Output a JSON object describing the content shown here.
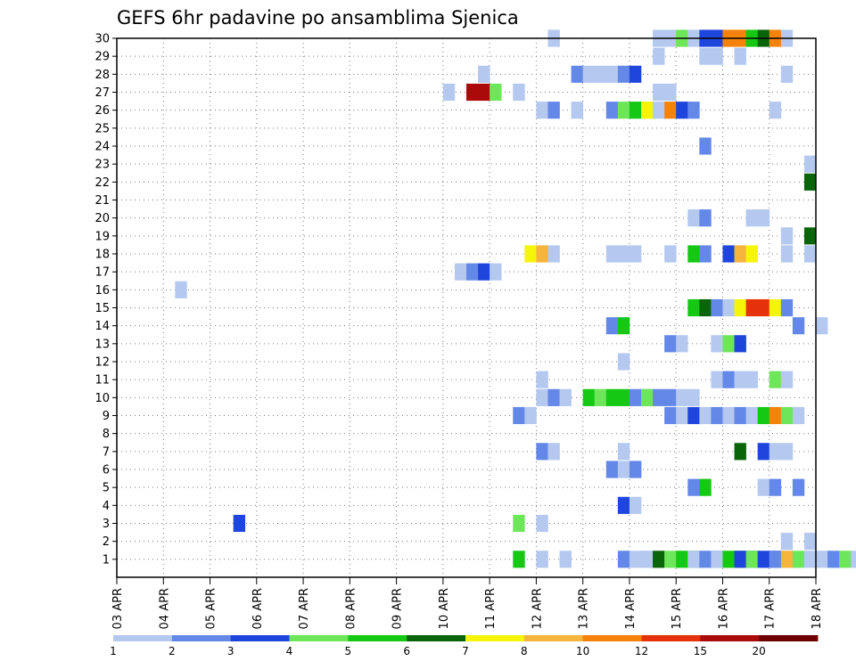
{
  "chart_data": {
    "type": "heatmap",
    "title": "GEFS 6hr padavine po ansamblima Sjenica",
    "xlabel": "",
    "ylabel": "",
    "x_start": "03 APR",
    "x_tick_labels": [
      "03 APR",
      "04 APR",
      "05 APR",
      "06 APR",
      "07 APR",
      "08 APR",
      "09 APR",
      "10 APR",
      "11 APR",
      "12 APR",
      "13 APR",
      "14 APR",
      "15 APR",
      "16 APR",
      "17 APR",
      "18 APR"
    ],
    "x_range_days": [
      0,
      15
    ],
    "y_tick_labels": [
      "1",
      "2",
      "3",
      "4",
      "5",
      "6",
      "7",
      "8",
      "9",
      "10",
      "11",
      "12",
      "13",
      "14",
      "15",
      "16",
      "17",
      "18",
      "19",
      "20",
      "21",
      "22",
      "23",
      "24",
      "25",
      "26",
      "27",
      "28",
      "29",
      "30"
    ],
    "y_range": [
      0,
      30
    ],
    "grid": true,
    "time_step_hours": 6,
    "colorbar": {
      "levels": [
        "1",
        "2",
        "3",
        "4",
        "5",
        "6",
        "7",
        "8",
        "10",
        "12",
        "15",
        "20"
      ],
      "colors": [
        "#b4c8f0",
        "#6488e8",
        "#1e46dc",
        "#6ee65a",
        "#14c814",
        "#0a640a",
        "#f5f50a",
        "#f5b43c",
        "#f5820a",
        "#e6320a",
        "#aa0a0a",
        "#6e0000"
      ]
    },
    "cells": [
      [
        1,
        8.5,
        5,
        1
      ],
      [
        1,
        9,
        1,
        1
      ],
      [
        1,
        9.5,
        1,
        1
      ],
      [
        1,
        10.75,
        2,
        1
      ],
      [
        1,
        11,
        1,
        2
      ],
      [
        1,
        11.25,
        1,
        1
      ],
      [
        1,
        11.5,
        6,
        1
      ],
      [
        1,
        11.75,
        4,
        1
      ],
      [
        1,
        12,
        5,
        2
      ],
      [
        1,
        12.25,
        1,
        1
      ],
      [
        1,
        12.5,
        2,
        2
      ],
      [
        1,
        12.75,
        1,
        1
      ],
      [
        1,
        13,
        5,
        2
      ],
      [
        1,
        13.25,
        3,
        2
      ],
      [
        1,
        13.5,
        4,
        1
      ],
      [
        1,
        13.75,
        3,
        2
      ],
      [
        1,
        14,
        2,
        1
      ],
      [
        1,
        14.25,
        8,
        1
      ],
      [
        1,
        14.5,
        4,
        1
      ],
      [
        1,
        14.75,
        1,
        1
      ],
      [
        1,
        15,
        1,
        1
      ],
      [
        1,
        15.25,
        2,
        1
      ],
      [
        1,
        15.5,
        4,
        1
      ],
      [
        1,
        15.75,
        1,
        1
      ],
      [
        2,
        14.25,
        1,
        1
      ],
      [
        2,
        14.75,
        1,
        1
      ],
      [
        3,
        2.5,
        3,
        1
      ],
      [
        3,
        8.5,
        4,
        1
      ],
      [
        3,
        9,
        1,
        1
      ],
      [
        4,
        10.75,
        3,
        1
      ],
      [
        4,
        11,
        1,
        1
      ],
      [
        5,
        12.25,
        2,
        1
      ],
      [
        5,
        12.5,
        5,
        1
      ],
      [
        5,
        13.75,
        1,
        1
      ],
      [
        5,
        14,
        2,
        1
      ],
      [
        5,
        14.5,
        2,
        1
      ],
      [
        6,
        10.5,
        2,
        1
      ],
      [
        6,
        10.75,
        1,
        2
      ],
      [
        6,
        11,
        2,
        1
      ],
      [
        7,
        9,
        2,
        1
      ],
      [
        7,
        9.25,
        1,
        1
      ],
      [
        7,
        10.75,
        1,
        1
      ],
      [
        7,
        13.25,
        6,
        1
      ],
      [
        7,
        13.75,
        3,
        1
      ],
      [
        7,
        14,
        1,
        2
      ],
      [
        9,
        8.5,
        2,
        1
      ],
      [
        9,
        8.75,
        1,
        1
      ],
      [
        9,
        11.75,
        2,
        1
      ],
      [
        9,
        12,
        1,
        1
      ],
      [
        9,
        12.25,
        3,
        1
      ],
      [
        9,
        12.5,
        1,
        1
      ],
      [
        9,
        12.75,
        2,
        1
      ],
      [
        9,
        13,
        1,
        1
      ],
      [
        9,
        13.25,
        2,
        1
      ],
      [
        9,
        13.5,
        1,
        1
      ],
      [
        9,
        13.75,
        5,
        1
      ],
      [
        9,
        14,
        9,
        1
      ],
      [
        9,
        14.25,
        4,
        1
      ],
      [
        9,
        14.5,
        1,
        1
      ],
      [
        10,
        9,
        1,
        1
      ],
      [
        10,
        9.25,
        2,
        1
      ],
      [
        10,
        9.5,
        1,
        1
      ],
      [
        10,
        10,
        5,
        1
      ],
      [
        10,
        10.25,
        4,
        1
      ],
      [
        10,
        10.5,
        5,
        2
      ],
      [
        10,
        11,
        2,
        2
      ],
      [
        10,
        11.25,
        4,
        1
      ],
      [
        10,
        11.5,
        2,
        2
      ],
      [
        10,
        12,
        1,
        2
      ],
      [
        11,
        9,
        1,
        1
      ],
      [
        11,
        12.75,
        1,
        1
      ],
      [
        11,
        13,
        2,
        1
      ],
      [
        11,
        13.25,
        1,
        1
      ],
      [
        11,
        13.5,
        1,
        1
      ],
      [
        11,
        14,
        4,
        1
      ],
      [
        11,
        14.25,
        1,
        1
      ],
      [
        12,
        10.75,
        1,
        1
      ],
      [
        13,
        11.75,
        2,
        1
      ],
      [
        13,
        12,
        1,
        1
      ],
      [
        13,
        12.75,
        1,
        1
      ],
      [
        13,
        13,
        4,
        1
      ],
      [
        13,
        13.25,
        3,
        1
      ],
      [
        14,
        10.5,
        2,
        1
      ],
      [
        14,
        10.75,
        5,
        1
      ],
      [
        14,
        14.5,
        2,
        1
      ],
      [
        14,
        15,
        1,
        1
      ],
      [
        15,
        12.25,
        5,
        1
      ],
      [
        15,
        12.5,
        6,
        1
      ],
      [
        15,
        12.75,
        2,
        1
      ],
      [
        15,
        13,
        1,
        1
      ],
      [
        15,
        13.25,
        7,
        1
      ],
      [
        15,
        13.5,
        10,
        2
      ],
      [
        15,
        14,
        7,
        1
      ],
      [
        15,
        14.25,
        2,
        1
      ],
      [
        16,
        1.25,
        1,
        1
      ],
      [
        17,
        7.25,
        1,
        1
      ],
      [
        17,
        7.5,
        2,
        1
      ],
      [
        17,
        7.75,
        3,
        1
      ],
      [
        17,
        8,
        1,
        1
      ],
      [
        18,
        8.75,
        7,
        1
      ],
      [
        18,
        9,
        8,
        1
      ],
      [
        18,
        9.25,
        1,
        1
      ],
      [
        18,
        10.5,
        1,
        1
      ],
      [
        18,
        10.75,
        1,
        2
      ],
      [
        18,
        11.75,
        1,
        1
      ],
      [
        18,
        12.25,
        5,
        1
      ],
      [
        18,
        12.5,
        2,
        1
      ],
      [
        18,
        13,
        3,
        1
      ],
      [
        18,
        13.25,
        8,
        1
      ],
      [
        18,
        13.5,
        7,
        1
      ],
      [
        18,
        14.25,
        1,
        1
      ],
      [
        18,
        14.75,
        1,
        1
      ],
      [
        19,
        14.25,
        1,
        1
      ],
      [
        19,
        14.75,
        6,
        1
      ],
      [
        20,
        12.25,
        1,
        1
      ],
      [
        20,
        12.5,
        2,
        1
      ],
      [
        20,
        13.5,
        1,
        2
      ],
      [
        22,
        14.75,
        6,
        1
      ],
      [
        23,
        14.75,
        1,
        1
      ],
      [
        24,
        12.5,
        2,
        1
      ],
      [
        26,
        9,
        1,
        1
      ],
      [
        26,
        9.25,
        2,
        1
      ],
      [
        26,
        9.75,
        1,
        1
      ],
      [
        26,
        10.5,
        2,
        1
      ],
      [
        26,
        10.75,
        4,
        1
      ],
      [
        26,
        11,
        5,
        1
      ],
      [
        26,
        11.25,
        7,
        1
      ],
      [
        26,
        11.5,
        1,
        1
      ],
      [
        26,
        11.75,
        9,
        1
      ],
      [
        26,
        12,
        3,
        1
      ],
      [
        26,
        12.25,
        2,
        1
      ],
      [
        26,
        14,
        1,
        1
      ],
      [
        27,
        7,
        1,
        1
      ],
      [
        27,
        7.5,
        11,
        2
      ],
      [
        27,
        8,
        4,
        1
      ],
      [
        27,
        8.5,
        1,
        1
      ],
      [
        27,
        11.5,
        1,
        2
      ],
      [
        28,
        7.75,
        1,
        1
      ],
      [
        28,
        9.75,
        2,
        1
      ],
      [
        28,
        10,
        1,
        3
      ],
      [
        28,
        10.75,
        2,
        1
      ],
      [
        28,
        11,
        3,
        1
      ],
      [
        28,
        14.25,
        1,
        1
      ],
      [
        29,
        11.5,
        1,
        1
      ],
      [
        29,
        12.5,
        1,
        2
      ],
      [
        29,
        13.25,
        1,
        1
      ],
      [
        30,
        9.25,
        1,
        1
      ],
      [
        30,
        11.5,
        1,
        2
      ],
      [
        30,
        12,
        4,
        1
      ],
      [
        30,
        12.25,
        1,
        1
      ],
      [
        30,
        12.5,
        3,
        2
      ],
      [
        30,
        13,
        9,
        2
      ],
      [
        30,
        13.5,
        5,
        1
      ],
      [
        30,
        13.75,
        6,
        1
      ],
      [
        30,
        14,
        9,
        1
      ],
      [
        30,
        14.25,
        1,
        1
      ]
    ]
  }
}
